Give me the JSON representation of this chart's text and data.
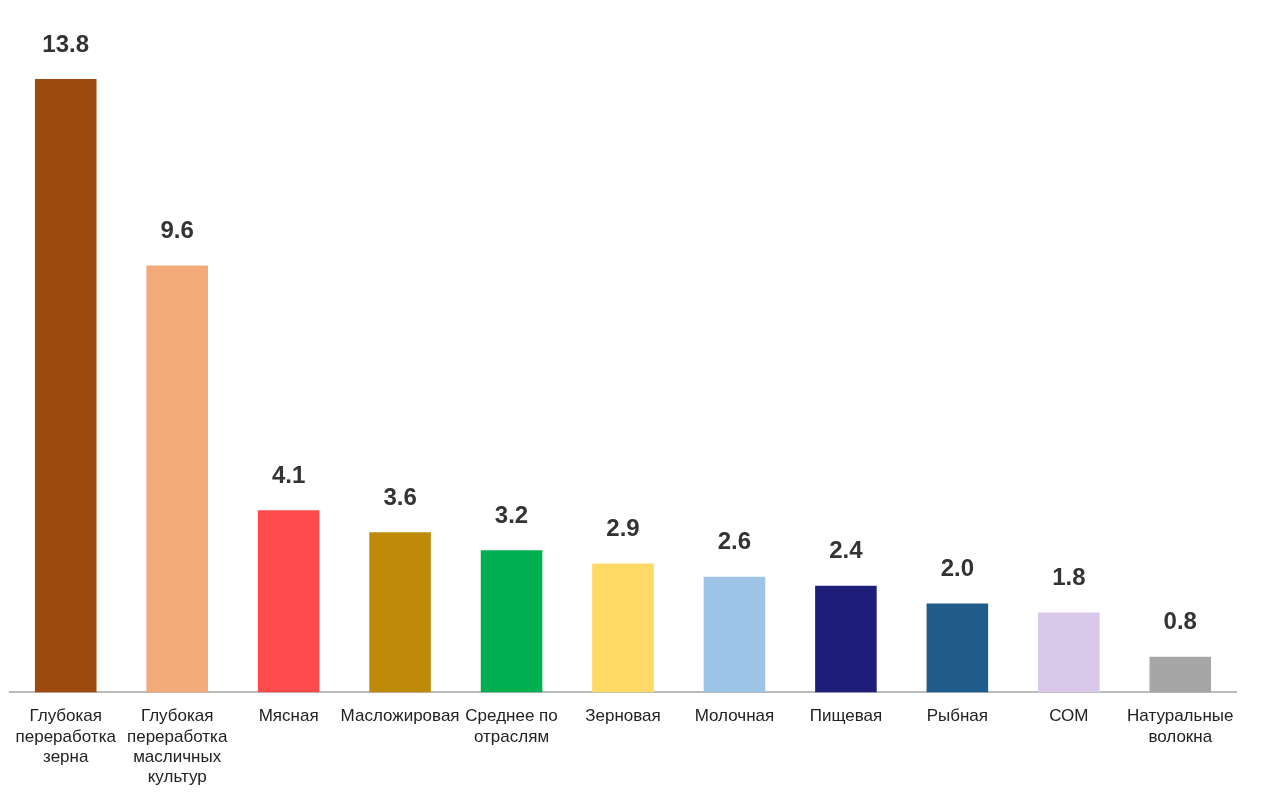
{
  "chart_data": {
    "type": "bar",
    "categories": [
      "Глубокая переработка зерна",
      "Глубокая переработка масличных культур",
      "Мясная",
      "Масложировая",
      "Среднее по отраслям",
      "Зерновая",
      "Молочная",
      "Пищевая",
      "Рыбная",
      "СОМ",
      "Натуральные волокна"
    ],
    "values": [
      13.8,
      9.6,
      4.1,
      3.6,
      3.2,
      2.9,
      2.6,
      2.4,
      2.0,
      1.8,
      0.8
    ],
    "value_labels": [
      "13.8",
      "9.6",
      "4.1",
      "3.6",
      "3.2",
      "2.9",
      "2.6",
      "2.4",
      "2.0",
      "1.8",
      "0.8"
    ],
    "colors": [
      "#9c4a0e",
      "#f2aa7a",
      "#ff4b4b",
      "#bf8a0a",
      "#00b050",
      "#ffd966",
      "#9dc3e6",
      "#1f1f7a",
      "#1f5c8c",
      "#d9c8ea",
      "#a6a6a6"
    ],
    "grid": false,
    "legend": false
  }
}
